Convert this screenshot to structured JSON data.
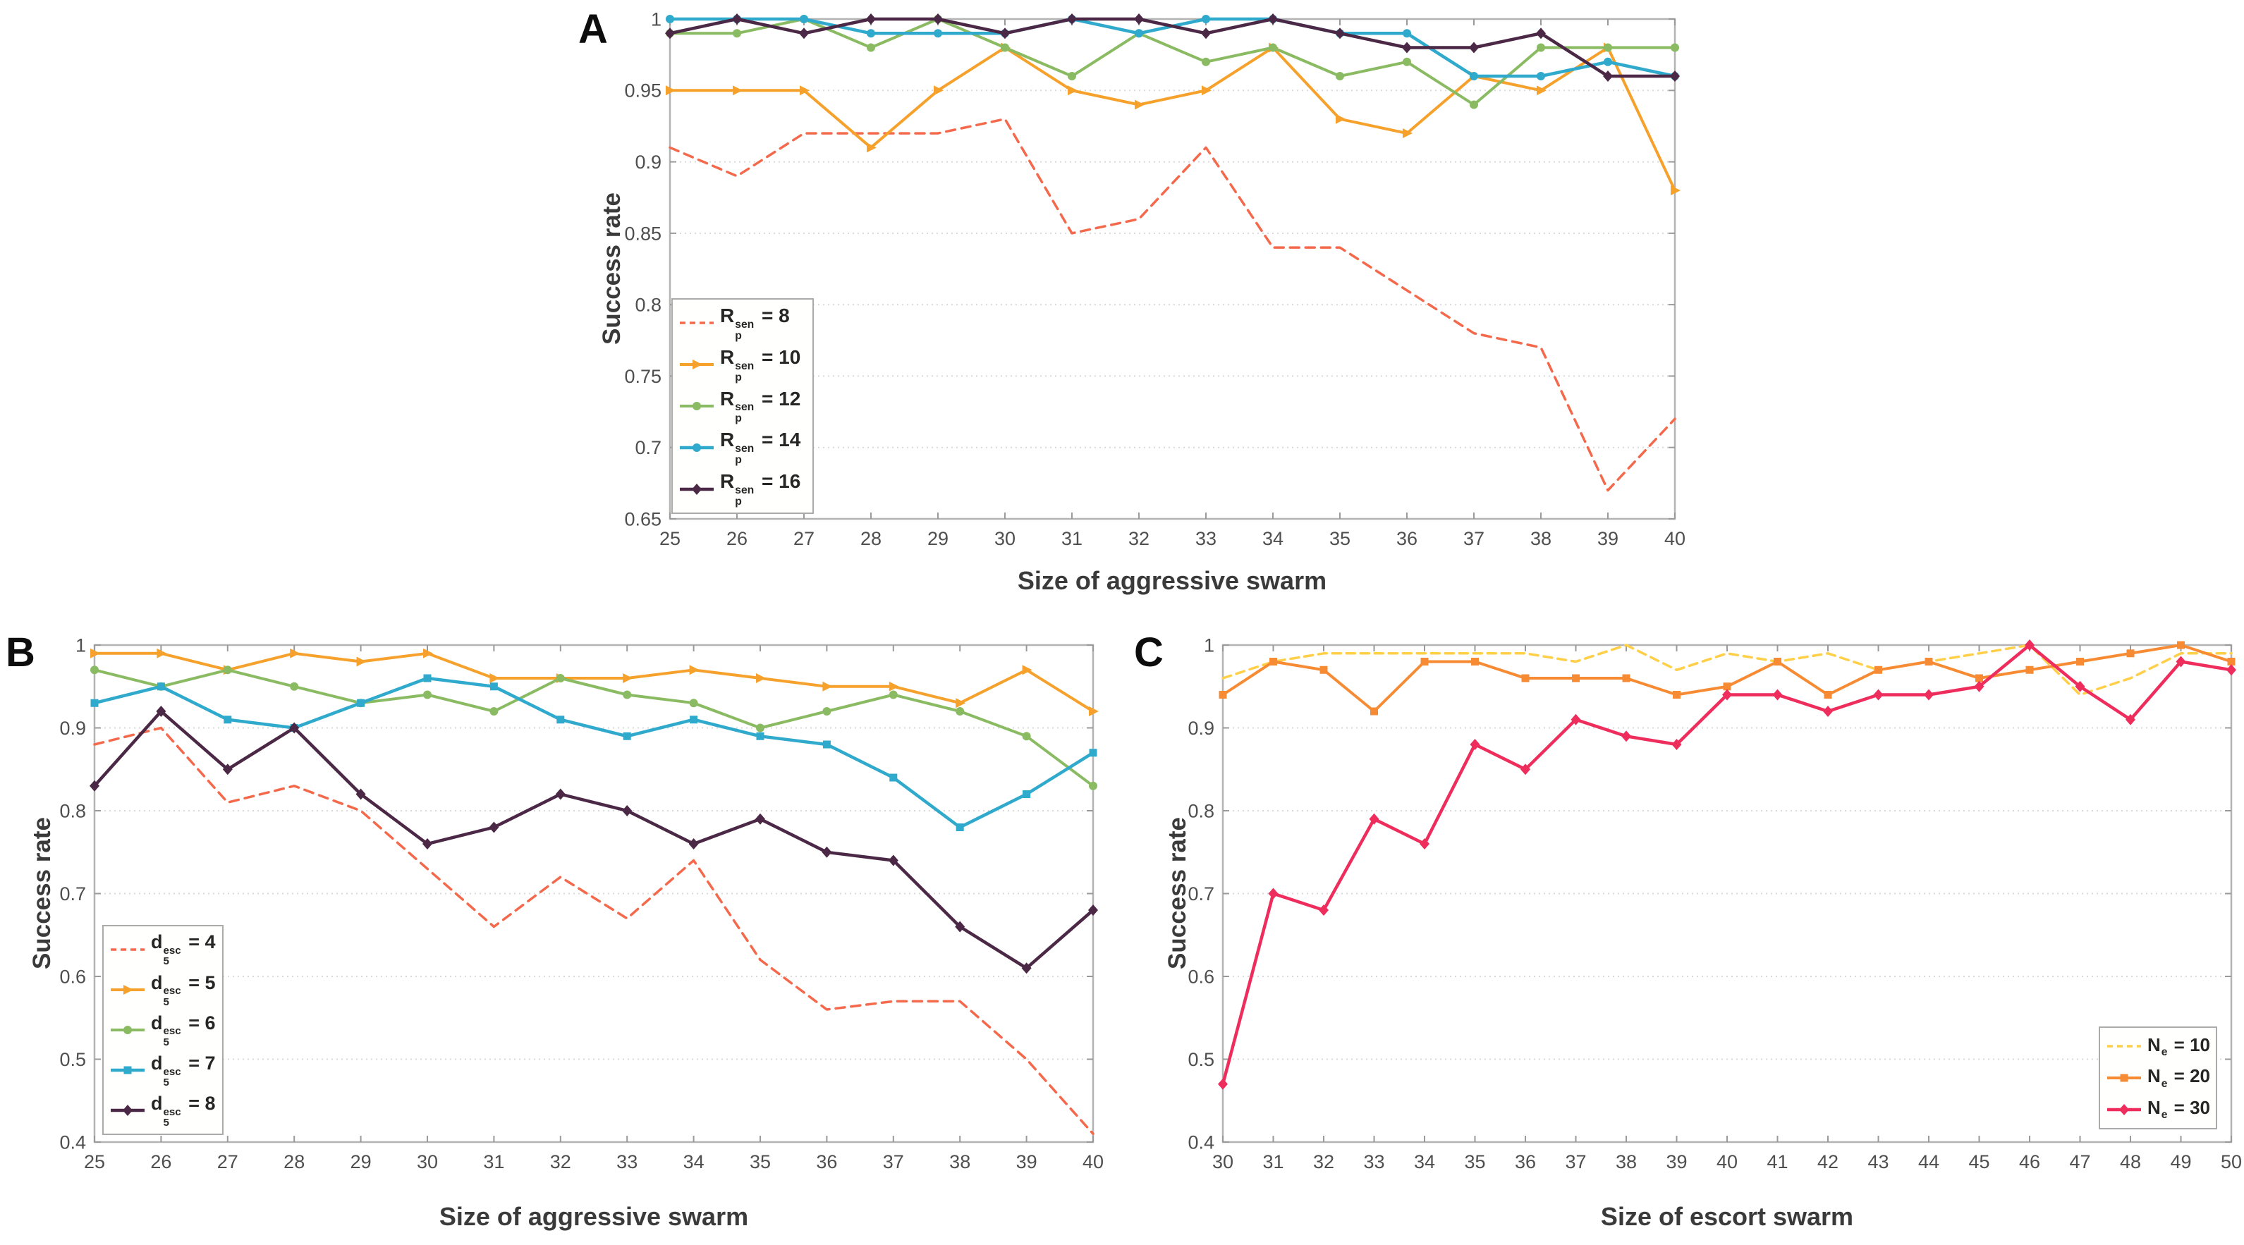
{
  "figure": {
    "background": "#ffffff",
    "grid_color": "#d9d9d9",
    "box_color": "#b3b3b3",
    "tick_color": "#9a9a9a",
    "tick_label_color": "#4f4f4f",
    "title_color": "#3a3a3a"
  },
  "chart_data": [
    {
      "id": "A",
      "panel": "A",
      "type": "line",
      "xlabel": "Size of aggressive swarm",
      "ylabel": "Success rate",
      "xlim": [
        25,
        40
      ],
      "ylim": [
        0.65,
        1
      ],
      "grid": "horizontal-dotted",
      "legend_position": "bottom-left",
      "x": [
        25,
        26,
        27,
        28,
        29,
        30,
        31,
        32,
        33,
        34,
        35,
        36,
        37,
        38,
        39,
        40
      ],
      "x_tick_labels": [
        "25",
        "26",
        "27",
        "28",
        "29",
        "30",
        "31",
        "32",
        "33",
        "34",
        "35",
        "36",
        "37",
        "38",
        "39",
        "40"
      ],
      "y_ticks": [
        0.65,
        0.7,
        0.75,
        0.8,
        0.85,
        0.9,
        0.95,
        1
      ],
      "y_tick_labels": [
        "0.65",
        "0.7",
        "0.75",
        "0.8",
        "0.85",
        "0.9",
        "0.95",
        "1"
      ],
      "series": [
        {
          "key": "Rp8",
          "label": {
            "base": "R",
            "sup": "sen",
            "sub": "p",
            "rhs": "= 8"
          },
          "color": "#F4694B",
          "dash": "13 9",
          "width": 3.5,
          "marker": "none",
          "values": [
            0.91,
            0.89,
            0.92,
            0.92,
            0.92,
            0.93,
            0.85,
            0.86,
            0.91,
            0.84,
            0.84,
            0.81,
            0.78,
            0.77,
            0.67,
            0.72
          ]
        },
        {
          "key": "Rp10",
          "label": {
            "base": "R",
            "sup": "sen",
            "sub": "p",
            "rhs": "= 10"
          },
          "color": "#F5A12B",
          "dash": "",
          "width": 4,
          "marker": "tri",
          "values": [
            0.95,
            0.95,
            0.95,
            0.91,
            0.95,
            0.98,
            0.95,
            0.94,
            0.95,
            0.98,
            0.93,
            0.92,
            0.96,
            0.95,
            0.98,
            0.88
          ]
        },
        {
          "key": "Rp12",
          "label": {
            "base": "R",
            "sup": "sen",
            "sub": "p",
            "rhs": "= 12"
          },
          "color": "#8ABB62",
          "dash": "",
          "width": 4,
          "marker": "circle",
          "values": [
            0.99,
            0.99,
            1,
            0.98,
            1,
            0.98,
            0.96,
            0.99,
            0.97,
            0.98,
            0.96,
            0.97,
            0.94,
            0.98,
            0.98,
            0.98
          ]
        },
        {
          "key": "Rp14",
          "label": {
            "base": "R",
            "sup": "sen",
            "sub": "p",
            "rhs": "= 14"
          },
          "color": "#2FA9CC",
          "dash": "",
          "width": 4.5,
          "marker": "circle",
          "values": [
            1,
            1,
            1,
            0.99,
            0.99,
            0.99,
            1,
            0.99,
            1,
            1,
            0.99,
            0.99,
            0.96,
            0.96,
            0.97,
            0.96
          ]
        },
        {
          "key": "Rp16",
          "label": {
            "base": "R",
            "sup": "sen",
            "sub": "p",
            "rhs": "= 16"
          },
          "color": "#4B2845",
          "dash": "",
          "width": 4.5,
          "marker": "diamond",
          "values": [
            0.99,
            1,
            0.99,
            1,
            1,
            0.99,
            1,
            1,
            0.99,
            1,
            0.99,
            0.98,
            0.98,
            0.99,
            0.96,
            0.96
          ]
        }
      ]
    },
    {
      "id": "B",
      "panel": "B",
      "type": "line",
      "xlabel": "Size of aggressive swarm",
      "ylabel": "Success rate",
      "xlim": [
        25,
        40
      ],
      "ylim": [
        0.4,
        1
      ],
      "grid": "horizontal-dotted",
      "legend_position": "bottom-left",
      "x": [
        25,
        26,
        27,
        28,
        29,
        30,
        31,
        32,
        33,
        34,
        35,
        36,
        37,
        38,
        39,
        40
      ],
      "x_tick_labels": [
        "25",
        "26",
        "27",
        "28",
        "29",
        "30",
        "31",
        "32",
        "33",
        "34",
        "35",
        "36",
        "37",
        "38",
        "39",
        "40"
      ],
      "y_ticks": [
        0.4,
        0.5,
        0.6,
        0.7,
        0.8,
        0.9,
        1
      ],
      "y_tick_labels": [
        "0.4",
        "0.5",
        "0.6",
        "0.7",
        "0.8",
        "0.9",
        "1"
      ],
      "series": [
        {
          "key": "d4",
          "label": {
            "base": "d",
            "sup": "esc",
            "sub": "5",
            "rhs": "= 4"
          },
          "color": "#F4694B",
          "dash": "13 9",
          "width": 3.5,
          "marker": "none",
          "values": [
            0.88,
            0.9,
            0.81,
            0.83,
            0.8,
            0.73,
            0.66,
            0.72,
            0.67,
            0.74,
            0.62,
            0.56,
            0.57,
            0.57,
            0.5,
            0.41
          ]
        },
        {
          "key": "d5",
          "label": {
            "base": "d",
            "sup": "esc",
            "sub": "5",
            "rhs": "= 5"
          },
          "color": "#F5A12B",
          "dash": "",
          "width": 4,
          "marker": "tri",
          "values": [
            0.99,
            0.99,
            0.97,
            0.99,
            0.98,
            0.99,
            0.96,
            0.96,
            0.96,
            0.97,
            0.96,
            0.95,
            0.95,
            0.93,
            0.97,
            0.92
          ]
        },
        {
          "key": "d6",
          "label": {
            "base": "d",
            "sup": "esc",
            "sub": "5",
            "rhs": "= 6"
          },
          "color": "#8ABB62",
          "dash": "",
          "width": 4,
          "marker": "circle",
          "values": [
            0.97,
            0.95,
            0.97,
            0.95,
            0.93,
            0.94,
            0.92,
            0.96,
            0.94,
            0.93,
            0.9,
            0.92,
            0.94,
            0.92,
            0.89,
            0.83
          ]
        },
        {
          "key": "d7",
          "label": {
            "base": "d",
            "sup": "esc",
            "sub": "5",
            "rhs": "= 7"
          },
          "color": "#2FA9CC",
          "dash": "",
          "width": 4.5,
          "marker": "square",
          "values": [
            0.93,
            0.95,
            0.91,
            0.9,
            0.93,
            0.96,
            0.95,
            0.91,
            0.89,
            0.91,
            0.89,
            0.88,
            0.84,
            0.78,
            0.82,
            0.87
          ]
        },
        {
          "key": "d8",
          "label": {
            "base": "d",
            "sup": "esc",
            "sub": "5",
            "rhs": "= 8"
          },
          "color": "#4B2845",
          "dash": "",
          "width": 4.5,
          "marker": "diamond",
          "values": [
            0.83,
            0.92,
            0.85,
            0.9,
            0.82,
            0.76,
            0.78,
            0.82,
            0.8,
            0.76,
            0.79,
            0.75,
            0.74,
            0.66,
            0.61,
            0.68
          ]
        }
      ]
    },
    {
      "id": "C",
      "panel": "C",
      "type": "line",
      "xlabel": "Size of escort swarm",
      "ylabel": "Success rate",
      "xlim": [
        30,
        50
      ],
      "ylim": [
        0.4,
        1
      ],
      "grid": "horizontal-dotted",
      "legend_position": "bottom-right",
      "x": [
        30,
        31,
        32,
        33,
        34,
        35,
        36,
        37,
        38,
        39,
        40,
        41,
        42,
        43,
        44,
        45,
        46,
        47,
        48,
        49,
        50
      ],
      "x_tick_labels": [
        "30",
        "31",
        "32",
        "33",
        "34",
        "35",
        "36",
        "37",
        "38",
        "39",
        "40",
        "41",
        "42",
        "43",
        "44",
        "45",
        "46",
        "47",
        "48",
        "49",
        "50"
      ],
      "y_ticks": [
        0.4,
        0.5,
        0.6,
        0.7,
        0.8,
        0.9,
        1
      ],
      "y_tick_labels": [
        "0.4",
        "0.5",
        "0.6",
        "0.7",
        "0.8",
        "0.9",
        "1"
      ],
      "series": [
        {
          "key": "Ne10",
          "label": {
            "base": "N",
            "sup": "",
            "sub": "e",
            "rhs": "= 10"
          },
          "color": "#FFCF47",
          "dash": "12 8",
          "width": 3.5,
          "marker": "none",
          "values": [
            0.96,
            0.98,
            0.99,
            0.99,
            0.99,
            0.99,
            0.99,
            0.98,
            1,
            0.97,
            0.99,
            0.98,
            0.99,
            0.97,
            0.98,
            0.99,
            1,
            0.94,
            0.96,
            0.99,
            0.99
          ]
        },
        {
          "key": "Ne20",
          "label": {
            "base": "N",
            "sup": "",
            "sub": "e",
            "rhs": "= 20"
          },
          "color": "#F68B34",
          "dash": "",
          "width": 4,
          "marker": "square",
          "values": [
            0.94,
            0.98,
            0.97,
            0.92,
            0.98,
            0.98,
            0.96,
            0.96,
            0.96,
            0.94,
            0.95,
            0.98,
            0.94,
            0.97,
            0.98,
            0.96,
            0.97,
            0.98,
            0.99,
            1,
            0.98
          ]
        },
        {
          "key": "Ne30",
          "label": {
            "base": "N",
            "sup": "",
            "sub": "e",
            "rhs": "= 30"
          },
          "color": "#EE2D5D",
          "dash": "",
          "width": 4.5,
          "marker": "diamond",
          "values": [
            0.47,
            0.7,
            0.68,
            0.79,
            0.76,
            0.88,
            0.85,
            0.91,
            0.89,
            0.88,
            0.94,
            0.94,
            0.92,
            0.94,
            0.94,
            0.95,
            1,
            0.95,
            0.91,
            0.98,
            0.97
          ]
        }
      ]
    }
  ]
}
